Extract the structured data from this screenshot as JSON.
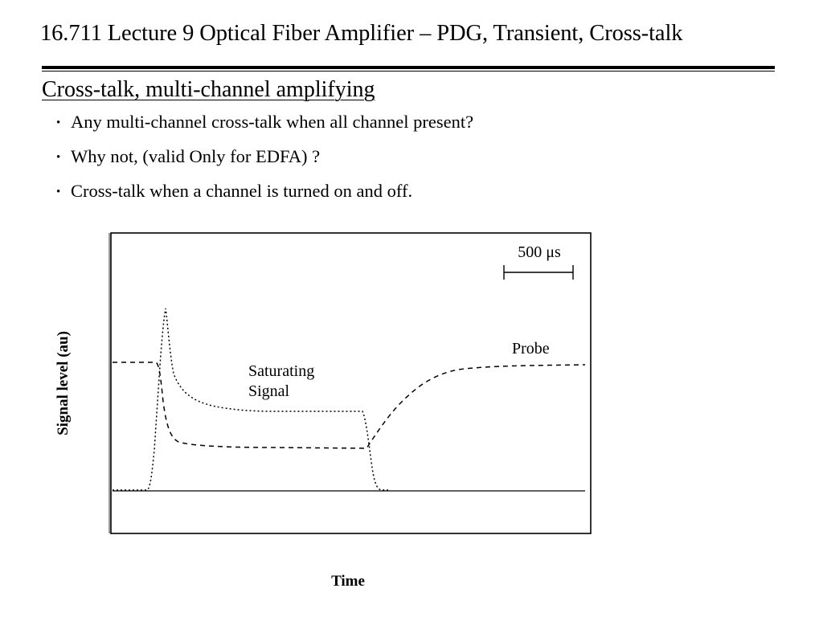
{
  "slide": {
    "title": "16.711 Lecture 9 Optical Fiber Amplifier – PDG, Transient, Cross-talk",
    "section_heading": "Cross-talk, multi-channel amplifying",
    "bullets": [
      "Any multi-channel cross-talk when all channel present?",
      "Why not, (valid Only for EDFA) ?",
      "Cross-talk when a channel is turned on and off."
    ],
    "bullet_marker": "•"
  },
  "figure": {
    "ylabel": "Signal level (au)",
    "xlabel": "Time",
    "scale_bar_label": "500 μs",
    "labels": {
      "saturating_line1": "Saturating",
      "saturating_line2": "Signal",
      "probe": "Probe"
    },
    "line_style": "dashed/dotted curves"
  }
}
